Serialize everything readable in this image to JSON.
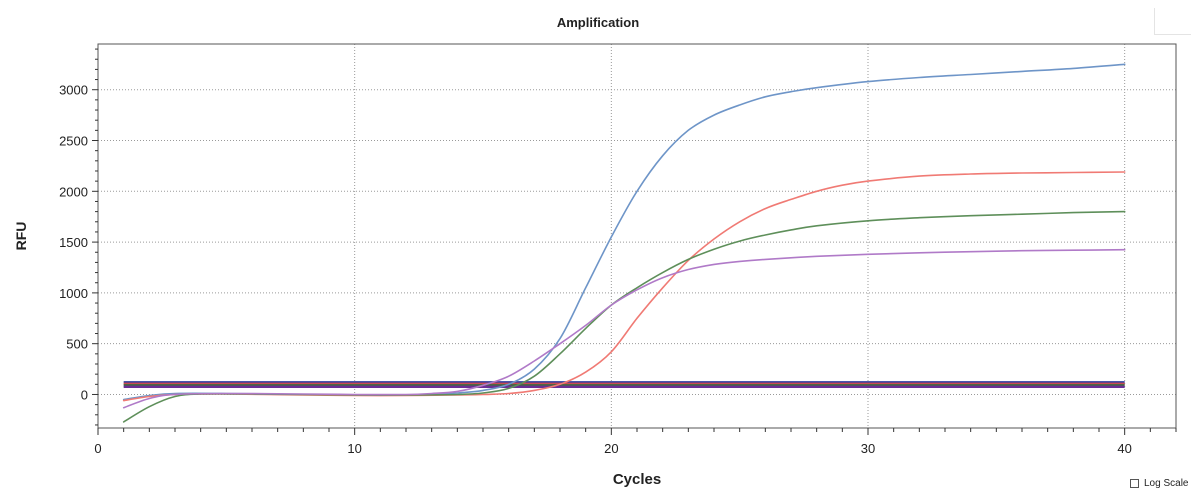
{
  "chart_data": {
    "type": "line",
    "title": "Amplification",
    "xlabel": "Cycles",
    "ylabel": "RFU",
    "xlim": [
      0,
      42
    ],
    "ylim": [
      -330,
      3450
    ],
    "x_ticks": [
      0,
      10,
      20,
      30,
      40
    ],
    "y_ticks": [
      0,
      500,
      1000,
      1500,
      2000,
      2500,
      3000
    ],
    "grid": true,
    "log_scale_checked": false,
    "series": [
      {
        "color": "#6e95c8",
        "points": [
          [
            1,
            -50
          ],
          [
            2,
            -10
          ],
          [
            3,
            10
          ],
          [
            5,
            10
          ],
          [
            8,
            0
          ],
          [
            10,
            -5
          ],
          [
            12,
            -5
          ],
          [
            13,
            0
          ],
          [
            14,
            15
          ],
          [
            15,
            40
          ],
          [
            16,
            100
          ],
          [
            17,
            250
          ],
          [
            18,
            550
          ],
          [
            19,
            1050
          ],
          [
            20,
            1550
          ],
          [
            21,
            2000
          ],
          [
            22,
            2350
          ],
          [
            23,
            2600
          ],
          [
            24,
            2750
          ],
          [
            25,
            2850
          ],
          [
            26,
            2930
          ],
          [
            27,
            2980
          ],
          [
            28,
            3020
          ],
          [
            30,
            3080
          ],
          [
            32,
            3120
          ],
          [
            34,
            3150
          ],
          [
            36,
            3180
          ],
          [
            38,
            3210
          ],
          [
            40,
            3250
          ]
        ]
      },
      {
        "color": "#f07a74",
        "points": [
          [
            1,
            -60
          ],
          [
            2,
            -20
          ],
          [
            3,
            0
          ],
          [
            5,
            5
          ],
          [
            8,
            -5
          ],
          [
            10,
            -10
          ],
          [
            12,
            -10
          ],
          [
            14,
            -5
          ],
          [
            15,
            0
          ],
          [
            16,
            10
          ],
          [
            17,
            40
          ],
          [
            18,
            100
          ],
          [
            19,
            220
          ],
          [
            20,
            420
          ],
          [
            21,
            750
          ],
          [
            22,
            1050
          ],
          [
            23,
            1320
          ],
          [
            24,
            1530
          ],
          [
            25,
            1700
          ],
          [
            26,
            1830
          ],
          [
            27,
            1920
          ],
          [
            28,
            2000
          ],
          [
            29,
            2060
          ],
          [
            30,
            2100
          ],
          [
            32,
            2150
          ],
          [
            34,
            2170
          ],
          [
            36,
            2180
          ],
          [
            38,
            2185
          ],
          [
            40,
            2190
          ]
        ]
      },
      {
        "color": "#5e8f5a",
        "points": [
          [
            1,
            -270
          ],
          [
            2,
            -120
          ],
          [
            3,
            -20
          ],
          [
            4,
            5
          ],
          [
            6,
            5
          ],
          [
            8,
            0
          ],
          [
            10,
            -5
          ],
          [
            12,
            -5
          ],
          [
            14,
            0
          ],
          [
            15,
            15
          ],
          [
            16,
            60
          ],
          [
            17,
            180
          ],
          [
            18,
            400
          ],
          [
            19,
            650
          ],
          [
            20,
            880
          ],
          [
            21,
            1050
          ],
          [
            22,
            1200
          ],
          [
            23,
            1330
          ],
          [
            24,
            1430
          ],
          [
            25,
            1510
          ],
          [
            26,
            1570
          ],
          [
            27,
            1620
          ],
          [
            28,
            1660
          ],
          [
            30,
            1710
          ],
          [
            32,
            1740
          ],
          [
            34,
            1760
          ],
          [
            36,
            1775
          ],
          [
            38,
            1790
          ],
          [
            40,
            1800
          ]
        ]
      },
      {
        "color": "#b07ac8",
        "points": [
          [
            1,
            -130
          ],
          [
            2,
            -40
          ],
          [
            3,
            0
          ],
          [
            5,
            10
          ],
          [
            8,
            5
          ],
          [
            10,
            0
          ],
          [
            12,
            0
          ],
          [
            13,
            10
          ],
          [
            14,
            30
          ],
          [
            15,
            90
          ],
          [
            16,
            180
          ],
          [
            17,
            330
          ],
          [
            18,
            500
          ],
          [
            19,
            680
          ],
          [
            20,
            880
          ],
          [
            21,
            1030
          ],
          [
            22,
            1150
          ],
          [
            23,
            1230
          ],
          [
            24,
            1280
          ],
          [
            25,
            1310
          ],
          [
            26,
            1330
          ],
          [
            28,
            1360
          ],
          [
            30,
            1380
          ],
          [
            32,
            1395
          ],
          [
            34,
            1405
          ],
          [
            36,
            1415
          ],
          [
            38,
            1420
          ],
          [
            40,
            1425
          ]
        ]
      }
    ],
    "threshold_lines": [
      {
        "y": 120,
        "color": "#2f3fa0"
      },
      {
        "y": 105,
        "color": "#c94a55"
      },
      {
        "y": 90,
        "color": "#3f6a3c"
      },
      {
        "y": 75,
        "color": "#6a2f95"
      }
    ],
    "colors": {
      "axis": "#333333",
      "grid": "#9a9a9a",
      "text": "#222222"
    }
  },
  "controls": {
    "log_scale_label": "Log Scale"
  }
}
